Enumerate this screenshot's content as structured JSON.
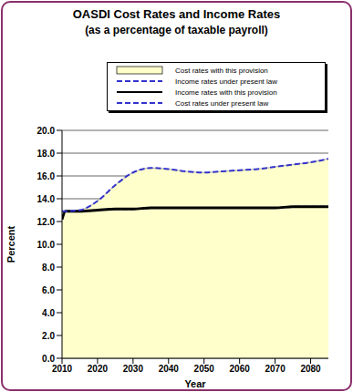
{
  "chart_data": {
    "type": "line",
    "title": "OASDI Cost Rates and Income Rates",
    "subtitle": "(as a percentage of taxable payroll)",
    "x_label": "Year",
    "y_label": "Percent",
    "x": [
      2010,
      2011,
      2015,
      2020,
      2025,
      2030,
      2035,
      2040,
      2045,
      2050,
      2055,
      2060,
      2065,
      2070,
      2075,
      2080,
      2085
    ],
    "series": [
      {
        "name": "Cost rates with this provision",
        "type": "area",
        "color": "#FFFFCC",
        "line_style": "solid",
        "values": [
          12.9,
          12.9,
          13.0,
          13.8,
          15.2,
          16.3,
          16.7,
          16.6,
          16.4,
          16.3,
          16.4,
          16.5,
          16.6,
          16.8,
          17.0,
          17.2,
          17.5
        ]
      },
      {
        "name": "Income rates under present law",
        "type": "line",
        "color": "#3333CC",
        "line_style": "dashed",
        "values": [
          12.2,
          12.9,
          12.9,
          13.0,
          13.1,
          13.1,
          13.2,
          13.2,
          13.2,
          13.2,
          13.2,
          13.2,
          13.2,
          13.2,
          13.3,
          13.3,
          13.3
        ]
      },
      {
        "name": "Income rates with this provision",
        "type": "line",
        "color": "#000000",
        "line_style": "solid",
        "values": [
          12.2,
          12.9,
          12.9,
          13.0,
          13.1,
          13.1,
          13.2,
          13.2,
          13.2,
          13.2,
          13.2,
          13.2,
          13.2,
          13.2,
          13.3,
          13.3,
          13.3
        ]
      },
      {
        "name": "Cost rates under present law",
        "type": "line",
        "color": "#3333CC",
        "line_style": "dashed",
        "values": [
          12.9,
          12.9,
          13.0,
          13.8,
          15.2,
          16.3,
          16.7,
          16.6,
          16.4,
          16.3,
          16.4,
          16.5,
          16.6,
          16.8,
          17.0,
          17.2,
          17.5
        ]
      }
    ],
    "xlim": [
      2010,
      2085
    ],
    "xticks": [
      2010,
      2020,
      2030,
      2040,
      2050,
      2060,
      2070,
      2080
    ],
    "ylim": [
      0,
      20
    ],
    "yticks": [
      {
        "value": 0,
        "label": "0.0"
      },
      {
        "value": 2,
        "label": "2.0"
      },
      {
        "value": 4,
        "label": "4.0"
      },
      {
        "value": 6,
        "label": "6.0"
      },
      {
        "value": 8,
        "label": "8.0"
      },
      {
        "value": 10,
        "label": "10.0"
      },
      {
        "value": 12,
        "label": "12.0"
      },
      {
        "value": 14,
        "label": "14.0"
      },
      {
        "value": 16,
        "label": "16.0"
      },
      {
        "value": 18,
        "label": "18.0"
      },
      {
        "value": 20,
        "label": "20.0"
      }
    ],
    "grid": true
  }
}
